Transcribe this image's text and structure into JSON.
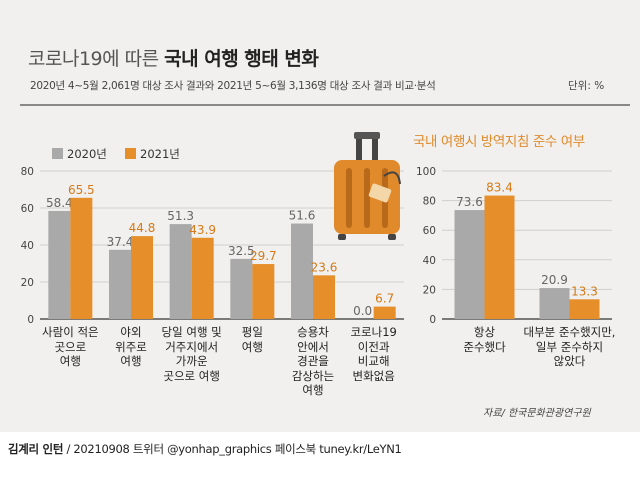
{
  "title_light": "코로나19에 따른 ",
  "title_bold": "국내 여행 행태 변화",
  "subtitle": "2020년 4~5월 2,061명 대상 조사 결과와 2021년 5~6월 3,136명 대상 조사 결과 비교·분석",
  "unit": "단위: %",
  "source": "자료/ 한국문화관광연구원",
  "footer_bold": "김계리 인턴",
  "footer_rest": " / 20210908   트위터 @yonhap_graphics  페이스북 tuney.kr/LeYN1",
  "icon": "suitcase-icon",
  "colors": {
    "y2020": "#a9a9a9",
    "y2021": "#e58e2a",
    "title_accent": "#e08a2c"
  },
  "chart_data": [
    {
      "type": "bar",
      "title": "",
      "categories": [
        "사람이 적은\n곳으로\n여행",
        "야외\n위주로\n여행",
        "당일 여행 및\n거주지에서\n가까운\n곳으로 여행",
        "평일\n여행",
        "승용차\n안에서\n경관을\n감상하는\n여행",
        "코로나19\n이전과\n비교해\n변화없음"
      ],
      "series": [
        {
          "name": "2020년",
          "values": [
            58.4,
            37.4,
            51.3,
            32.5,
            51.6,
            0.0
          ],
          "labels": [
            "58.4",
            "37.4",
            "51.3",
            "32.5",
            "51.6",
            "0.0"
          ]
        },
        {
          "name": "2021년",
          "values": [
            65.5,
            44.8,
            43.9,
            29.7,
            23.6,
            6.7
          ],
          "labels": [
            "65.5",
            "44.8",
            "43.9",
            "29.7",
            "23.6",
            "6.7"
          ]
        }
      ],
      "yticks": [
        "0",
        "20",
        "40",
        "60",
        "80"
      ],
      "ylim": [
        0,
        80
      ],
      "grid": true,
      "legend": "top-left"
    },
    {
      "type": "bar",
      "title": "국내 여행시 방역지침 준수 여부",
      "categories": [
        "항상\n준수했다",
        "대부분 준수했지만,\n일부 준수하지\n않았다"
      ],
      "series": [
        {
          "name": "2020년",
          "values": [
            73.6,
            20.9
          ],
          "labels": [
            "73.6",
            "20.9"
          ]
        },
        {
          "name": "2021년",
          "values": [
            83.4,
            13.3
          ],
          "labels": [
            "83.4",
            "13.3"
          ]
        }
      ],
      "yticks": [
        "0",
        "20",
        "40",
        "60",
        "80",
        "100"
      ],
      "ylim": [
        0,
        100
      ],
      "grid": true
    }
  ]
}
